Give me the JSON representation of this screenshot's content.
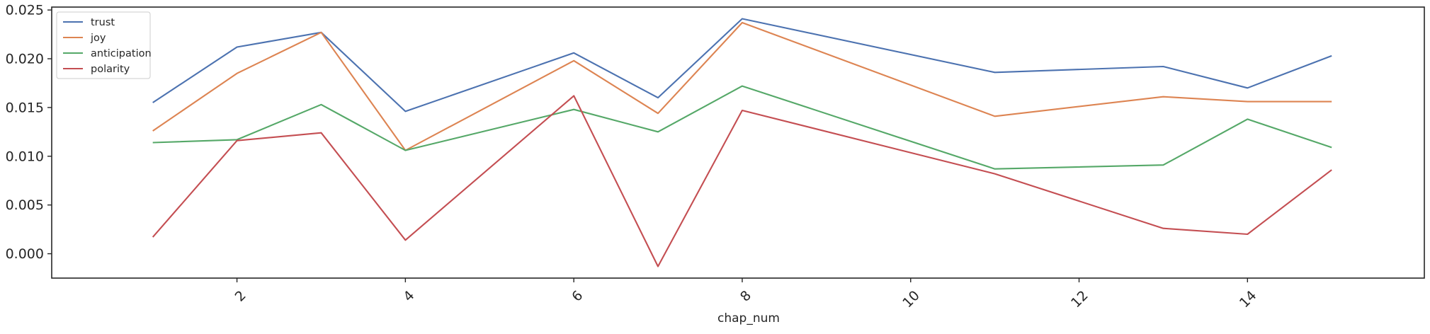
{
  "chart_data": {
    "type": "line",
    "title": "",
    "xlabel": "chap_num",
    "ylabel": "",
    "x": [
      1,
      2,
      3,
      4,
      6,
      7,
      8,
      11,
      13,
      14,
      15
    ],
    "xlim": [
      -0.2,
      16.1
    ],
    "ylim": [
      -0.0025,
      0.0253
    ],
    "xticks": [
      2,
      4,
      6,
      8,
      10,
      12,
      14
    ],
    "xtick_labels": [
      "2",
      "4",
      "6",
      "8",
      "10",
      "12",
      "14"
    ],
    "yticks": [
      0.0,
      0.005,
      0.01,
      0.015,
      0.02,
      0.025
    ],
    "ytick_labels": [
      "0.000",
      "0.005",
      "0.010",
      "0.015",
      "0.020",
      "0.025"
    ],
    "xtick_rotation": 45,
    "grid": false,
    "legend_position": "top-left",
    "series": [
      {
        "name": "trust",
        "color": "#4c72b0",
        "values": [
          0.0155,
          0.0212,
          0.0227,
          0.0146,
          0.0206,
          0.016,
          0.0241,
          0.0186,
          0.0192,
          0.017,
          0.0203
        ]
      },
      {
        "name": "joy",
        "color": "#dd8452",
        "values": [
          0.0126,
          0.0185,
          0.0227,
          0.0106,
          0.0198,
          0.0144,
          0.0237,
          0.0141,
          0.0161,
          0.0156,
          0.0156
        ]
      },
      {
        "name": "anticipation",
        "color": "#55a868",
        "values": [
          0.0114,
          0.0117,
          0.0153,
          0.0106,
          0.0148,
          0.0125,
          0.0172,
          0.0087,
          0.0091,
          0.0138,
          0.0109
        ]
      },
      {
        "name": "polarity",
        "color": "#c44e52",
        "values": [
          0.0017,
          0.0116,
          0.0124,
          0.0014,
          0.0162,
          -0.0013,
          0.0147,
          0.0082,
          0.0026,
          0.002,
          0.0086
        ]
      }
    ]
  }
}
